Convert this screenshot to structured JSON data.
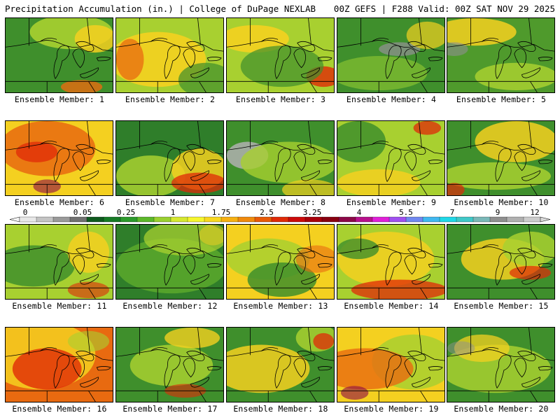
{
  "header": {
    "title": "Precipitation Accumulation (in.) | College of DuPage NEXLAB",
    "run_info": "00Z GEFS | F288 Valid: 00Z SAT NOV 29 2025"
  },
  "colorbar": {
    "tick_labels": [
      "0",
      "0.05",
      "0.25",
      "1",
      "1.75",
      "2.5",
      "3.25",
      "4",
      "5.5",
      "7",
      "9",
      "12"
    ],
    "colors": [
      "#e8e8e8",
      "#c4c4c4",
      "#9a9a9a",
      "#707070",
      "#0e5a1e",
      "#167a25",
      "#2c9a2c",
      "#5cb82a",
      "#9ad030",
      "#d6e830",
      "#f6f62e",
      "#f8d820",
      "#f6b012",
      "#f08a0c",
      "#e85a08",
      "#e02a08",
      "#cc0a0a",
      "#a8000a",
      "#880010",
      "#8c0848",
      "#b8108c",
      "#e020d8",
      "#a050f0",
      "#7088f0",
      "#40b8f0",
      "#20d8e8",
      "#40c8c8",
      "#7ab8b8",
      "#909090",
      "#b0b0b0",
      "#cccccc"
    ]
  },
  "panels": [
    {
      "label": "Ensemble Member: 1",
      "base": "#3f8f2c",
      "blobs": [
        {
          "c": "#a8d030",
          "o": 0.9
        },
        {
          "c": "#f4d020",
          "o": 0.85
        },
        {
          "c": "#e86a10",
          "o": 0.8
        }
      ]
    },
    {
      "label": "Ensemble Member: 2",
      "base": "#a8d030",
      "blobs": [
        {
          "c": "#f4d020",
          "o": 0.9
        },
        {
          "c": "#e86a10",
          "o": 0.75
        },
        {
          "c": "#3f8f2c",
          "o": 0.7
        }
      ]
    },
    {
      "label": "Ensemble Member: 3",
      "base": "#a8d030",
      "blobs": [
        {
          "c": "#f4d020",
          "o": 0.9
        },
        {
          "c": "#e02a08",
          "o": 0.8
        },
        {
          "c": "#3f8f2c",
          "o": 0.7
        }
      ]
    },
    {
      "label": "Ensemble Member: 4",
      "base": "#3f8f2c",
      "blobs": [
        {
          "c": "#7ab830",
          "o": 0.85
        },
        {
          "c": "#909090",
          "o": 0.75
        },
        {
          "c": "#f4d020",
          "o": 0.7
        }
      ]
    },
    {
      "label": "Ensemble Member: 5",
      "base": "#4f9a2c",
      "blobs": [
        {
          "c": "#f4d020",
          "o": 0.85
        },
        {
          "c": "#a8d030",
          "o": 0.85
        },
        {
          "c": "#909090",
          "o": 0.6
        }
      ]
    },
    {
      "label": "Ensemble Member: 6",
      "base": "#f4d020",
      "blobs": [
        {
          "c": "#e86a10",
          "o": 0.85
        },
        {
          "c": "#e02a08",
          "o": 0.75
        },
        {
          "c": "#8c0848",
          "o": 0.6
        }
      ]
    },
    {
      "label": "Ensemble Member: 7",
      "base": "#2f7e2a",
      "blobs": [
        {
          "c": "#a8d030",
          "o": 0.85
        },
        {
          "c": "#f4d020",
          "o": 0.85
        },
        {
          "c": "#e02a08",
          "o": 0.75
        }
      ]
    },
    {
      "label": "Ensemble Member: 8",
      "base": "#3f8f2c",
      "blobs": [
        {
          "c": "#b0b0b0",
          "o": 0.85
        },
        {
          "c": "#a8d030",
          "o": 0.8
        },
        {
          "c": "#f4d020",
          "o": 0.7
        }
      ]
    },
    {
      "label": "Ensemble Member: 9",
      "base": "#a8d030",
      "blobs": [
        {
          "c": "#3f8f2c",
          "o": 0.85
        },
        {
          "c": "#f4d020",
          "o": 0.85
        },
        {
          "c": "#e02a08",
          "o": 0.75
        }
      ]
    },
    {
      "label": "Ensemble Member: 10",
      "base": "#3f8f2c",
      "blobs": [
        {
          "c": "#f4d020",
          "o": 0.85
        },
        {
          "c": "#a8d030",
          "o": 0.85
        },
        {
          "c": "#e02a08",
          "o": 0.7
        }
      ]
    },
    {
      "label": "Ensemble Member: 11",
      "base": "#a8d030",
      "blobs": [
        {
          "c": "#3f8f2c",
          "o": 0.85
        },
        {
          "c": "#f4d020",
          "o": 0.85
        },
        {
          "c": "#e02a08",
          "o": 0.6
        }
      ]
    },
    {
      "label": "Ensemble Member: 12",
      "base": "#2f7e2a",
      "blobs": [
        {
          "c": "#5aa82c",
          "o": 0.85
        },
        {
          "c": "#a8d030",
          "o": 0.75
        },
        {
          "c": "#f4d020",
          "o": 0.5
        }
      ]
    },
    {
      "label": "Ensemble Member: 13",
      "base": "#f4d020",
      "blobs": [
        {
          "c": "#a8d030",
          "o": 0.85
        },
        {
          "c": "#3f8f2c",
          "o": 0.85
        },
        {
          "c": "#e86a10",
          "o": 0.6
        }
      ]
    },
    {
      "label": "Ensemble Member: 14",
      "base": "#a8d030",
      "blobs": [
        {
          "c": "#f4d020",
          "o": 0.85
        },
        {
          "c": "#3f8f2c",
          "o": 0.8
        },
        {
          "c": "#e02a08",
          "o": 0.75
        }
      ]
    },
    {
      "label": "Ensemble Member: 15",
      "base": "#3f8f2c",
      "blobs": [
        {
          "c": "#f4d020",
          "o": 0.85
        },
        {
          "c": "#a8d030",
          "o": 0.85
        },
        {
          "c": "#e02a08",
          "o": 0.7
        }
      ]
    },
    {
      "label": "Ensemble Member: 16",
      "base": "#e86a10",
      "blobs": [
        {
          "c": "#f4d020",
          "o": 0.85
        },
        {
          "c": "#e02a08",
          "o": 0.8
        },
        {
          "c": "#a8d030",
          "o": 0.6
        }
      ]
    },
    {
      "label": "Ensemble Member: 17",
      "base": "#3f8f2c",
      "blobs": [
        {
          "c": "#a8d030",
          "o": 0.85
        },
        {
          "c": "#f4d020",
          "o": 0.8
        },
        {
          "c": "#e02a08",
          "o": 0.6
        }
      ]
    },
    {
      "label": "Ensemble Member: 18",
      "base": "#3f8f2c",
      "blobs": [
        {
          "c": "#f4d020",
          "o": 0.85
        },
        {
          "c": "#a8d030",
          "o": 0.85
        },
        {
          "c": "#e02a08",
          "o": 0.75
        }
      ]
    },
    {
      "label": "Ensemble Member: 19",
      "base": "#f4d020",
      "blobs": [
        {
          "c": "#a8d030",
          "o": 0.85
        },
        {
          "c": "#e86a10",
          "o": 0.8
        },
        {
          "c": "#8c0848",
          "o": 0.6
        }
      ]
    },
    {
      "label": "Ensemble Member: 20",
      "base": "#3f8f2c",
      "blobs": [
        {
          "c": "#a8d030",
          "o": 0.85
        },
        {
          "c": "#f4d020",
          "o": 0.75
        },
        {
          "c": "#909090",
          "o": 0.5
        }
      ]
    }
  ]
}
